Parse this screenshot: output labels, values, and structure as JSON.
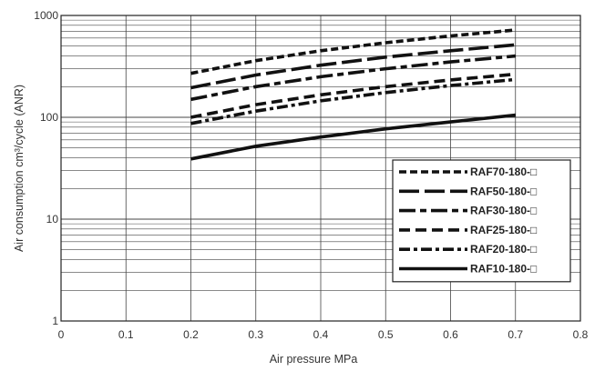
{
  "chart_data": {
    "type": "line",
    "title": "",
    "xlabel": "Air pressure MPa",
    "ylabel": "Air consumption cm³/cycle (ANR)",
    "xlim": [
      0,
      0.8
    ],
    "ylim": [
      1,
      1000
    ],
    "yscale": "log",
    "x_ticks": [
      "0",
      "0.1",
      "0.2",
      "0.3",
      "0.4",
      "0.5",
      "0.6",
      "0.7",
      "0.8"
    ],
    "y_ticks": [
      "1",
      "10",
      "100",
      "1000"
    ],
    "grid": true,
    "legend_position": "bottom-right",
    "series": [
      {
        "name": "RAF70-180-□",
        "dash": "short-dash",
        "x": [
          0.2,
          0.3,
          0.4,
          0.5,
          0.6,
          0.7
        ],
        "values": [
          270,
          360,
          450,
          540,
          630,
          720
        ]
      },
      {
        "name": "RAF50-180-□",
        "dash": "long-dash",
        "x": [
          0.2,
          0.3,
          0.4,
          0.5,
          0.6,
          0.7
        ],
        "values": [
          195,
          260,
          325,
          390,
          450,
          515
        ]
      },
      {
        "name": "RAF30-180-□",
        "dash": "long-short-dash",
        "x": [
          0.2,
          0.3,
          0.4,
          0.5,
          0.6,
          0.7
        ],
        "values": [
          150,
          200,
          250,
          300,
          350,
          400
        ]
      },
      {
        "name": "RAF25-180-□",
        "dash": "medium-dash",
        "x": [
          0.2,
          0.3,
          0.4,
          0.5,
          0.6,
          0.7
        ],
        "values": [
          100,
          133,
          166,
          200,
          233,
          265
        ]
      },
      {
        "name": "RAF20-180-□",
        "dash": "dash-dot",
        "x": [
          0.2,
          0.3,
          0.4,
          0.5,
          0.6,
          0.7
        ],
        "values": [
          87,
          115,
          145,
          175,
          205,
          235
        ]
      },
      {
        "name": "RAF10-180-□",
        "dash": "solid",
        "x": [
          0.2,
          0.3,
          0.4,
          0.5,
          0.6,
          0.7
        ],
        "values": [
          39,
          52,
          64,
          77,
          90,
          105
        ]
      }
    ]
  }
}
